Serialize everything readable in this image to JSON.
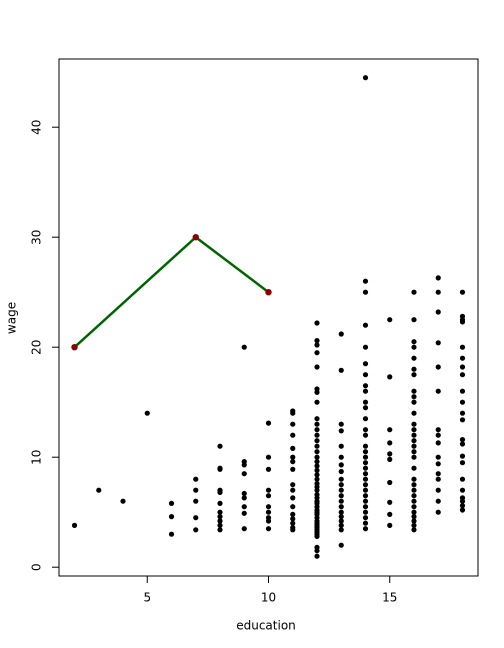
{
  "chart_data": {
    "type": "scatter",
    "xlabel": "education",
    "ylabel": "wage",
    "xlim": [
      1.36,
      18.64
    ],
    "ylim": [
      -0.8,
      46.2
    ],
    "xticks": [
      5,
      10,
      15
    ],
    "yticks": [
      0,
      10,
      20,
      30,
      40
    ],
    "series": [
      {
        "type": "scatter",
        "color": "#000000",
        "x": [
          2,
          3,
          4,
          5,
          6,
          6,
          6,
          7,
          7,
          7,
          7,
          7,
          8,
          8,
          8,
          8,
          8,
          8,
          8,
          8,
          8,
          8,
          8,
          9,
          9,
          9,
          9,
          9,
          9,
          9,
          9,
          9,
          10,
          10,
          10,
          10,
          10,
          10,
          10,
          10,
          10,
          10,
          11,
          11,
          11,
          11,
          11,
          11,
          11,
          11,
          11,
          11,
          11,
          11,
          11,
          11,
          11,
          11,
          11,
          12,
          12,
          12,
          12,
          12,
          12,
          12,
          12,
          12,
          12,
          12,
          12,
          12,
          12,
          12,
          12,
          12,
          12,
          12,
          12,
          12,
          12,
          12,
          12,
          12,
          12,
          12,
          12,
          12,
          12,
          12,
          12,
          12,
          12,
          12,
          12,
          12,
          12,
          12,
          12,
          12,
          12,
          12,
          12,
          13,
          13,
          13,
          13,
          13,
          13,
          13,
          13,
          13,
          13,
          13,
          13,
          13,
          13,
          13,
          13,
          13,
          13,
          13,
          13,
          14,
          14,
          14,
          14,
          14,
          14,
          14,
          14,
          14,
          14,
          14,
          14,
          14,
          14,
          14,
          14,
          14,
          14,
          14,
          14,
          14,
          14,
          14,
          14,
          14,
          14,
          14,
          14,
          14,
          14,
          15,
          15,
          15,
          15,
          15,
          15,
          15,
          15,
          15,
          15,
          16,
          16,
          16,
          16,
          16,
          16,
          16,
          16,
          16,
          16,
          16,
          16,
          16,
          16,
          16,
          16,
          16,
          16,
          16,
          16,
          16,
          16,
          16,
          16,
          16,
          16,
          16,
          16,
          16,
          16,
          17,
          17,
          17,
          17,
          17,
          17,
          17,
          17,
          17,
          17,
          17,
          17,
          17,
          17,
          17,
          17,
          18,
          18,
          18,
          18,
          18,
          18,
          18,
          18,
          18,
          18,
          18,
          18,
          18,
          18,
          18,
          18,
          18,
          18,
          18,
          18,
          18,
          18
        ],
        "values": [
          3.8,
          7.0,
          6.0,
          14.0,
          3.0,
          4.6,
          5.8,
          3.4,
          4.5,
          6.0,
          7.0,
          8.0,
          3.4,
          3.8,
          4.2,
          4.6,
          5.0,
          5.8,
          6.8,
          7.0,
          8.9,
          9.0,
          11.0,
          3.5,
          4.9,
          5.5,
          6.3,
          6.7,
          8.5,
          9.3,
          9.6,
          20.0,
          3.5,
          4.2,
          4.5,
          5.0,
          5.5,
          6.5,
          7.0,
          8.9,
          10.0,
          13.1,
          3.4,
          3.6,
          4.0,
          4.4,
          4.8,
          5.5,
          6.3,
          7.0,
          7.5,
          8.9,
          9.6,
          10.0,
          10.8,
          12.0,
          13.0,
          14.0,
          14.2,
          1.0,
          1.5,
          1.8,
          2.8,
          3.0,
          3.2,
          3.4,
          3.6,
          3.8,
          4.0,
          4.2,
          4.5,
          4.8,
          5.0,
          5.2,
          5.5,
          5.8,
          6.0,
          6.3,
          6.6,
          7.0,
          7.3,
          7.6,
          8.0,
          8.4,
          8.8,
          9.2,
          9.6,
          10.0,
          10.5,
          11.0,
          11.5,
          12.0,
          12.5,
          13.0,
          13.5,
          15.0,
          15.9,
          16.2,
          18.2,
          19.5,
          20.2,
          20.6,
          22.2,
          2.0,
          3.4,
          3.8,
          4.2,
          4.6,
          5.0,
          5.5,
          6.0,
          6.5,
          7.0,
          7.5,
          8.0,
          8.7,
          9.3,
          10.0,
          11.0,
          12.4,
          13.0,
          17.9,
          21.2,
          3.5,
          4.0,
          4.5,
          5.0,
          5.5,
          6.0,
          6.5,
          7.0,
          7.5,
          8.0,
          8.5,
          9.0,
          9.5,
          10.0,
          10.5,
          11.0,
          12.0,
          12.5,
          13.5,
          14.5,
          15.0,
          16.0,
          16.5,
          17.5,
          18.5,
          20.0,
          22.0,
          25.0,
          26.0,
          44.5,
          3.8,
          4.8,
          5.9,
          7.7,
          9.8,
          10.3,
          11.3,
          12.5,
          17.3,
          22.5,
          3.4,
          3.8,
          4.2,
          4.6,
          5.0,
          5.5,
          6.0,
          6.5,
          7.0,
          7.5,
          8.0,
          9.0,
          10.0,
          10.5,
          11.0,
          11.5,
          12.0,
          12.5,
          13.0,
          14.0,
          15.0,
          15.5,
          16.0,
          17.5,
          18.0,
          19.0,
          20.0,
          20.5,
          22.5,
          25.0,
          5.0,
          6.0,
          7.0,
          8.0,
          8.5,
          9.4,
          10.0,
          11.3,
          12.0,
          12.5,
          16.0,
          18.2,
          20.4,
          23.2,
          25.0,
          26.3,
          5.2,
          5.6,
          6.0,
          6.3,
          7.0,
          8.0,
          9.5,
          10.1,
          11.2,
          11.6,
          13.4,
          14.0,
          15.0,
          16.0,
          17.5,
          18.2,
          19.0,
          20.0,
          22.3,
          22.5,
          22.8,
          25.0
        ]
      },
      {
        "type": "line",
        "color": "#006400",
        "point_color": "#8b0000",
        "x": [
          2,
          7,
          10
        ],
        "values": [
          20,
          30,
          25
        ]
      }
    ]
  }
}
